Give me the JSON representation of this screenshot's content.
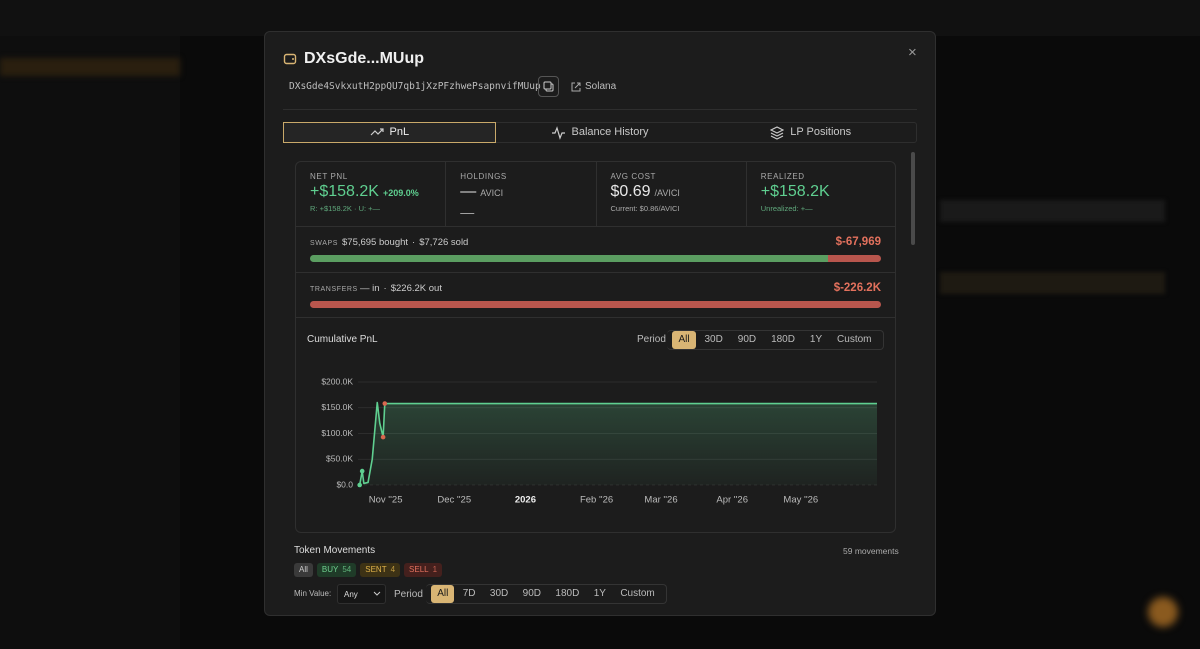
{
  "modal": {
    "title": "DXsGde...MUup",
    "address": "DXsGde4SvkxutH2ppQU7qb1jXzPFzhwePsapnvifMUup",
    "network": "Solana"
  },
  "tabs": [
    {
      "label": "PnL",
      "active": true
    },
    {
      "label": "Balance History",
      "active": false
    },
    {
      "label": "LP Positions",
      "active": false
    }
  ],
  "stats": [
    {
      "label": "NET PNL",
      "value": "+$158.2K",
      "extra": "+209.0%",
      "sub": "R: +$158.2K · U: +—",
      "tone": "positive"
    },
    {
      "label": "HOLDINGS",
      "value": "—",
      "extra": "AVICI",
      "sub": "—",
      "tone": "neutral"
    },
    {
      "label": "AVG COST",
      "value": "$0.69",
      "extra": "/AVICI",
      "sub": "Current: $0.86/AVICI",
      "tone": "neutral"
    },
    {
      "label": "REALIZED",
      "value": "+$158.2K",
      "sub": "Unrealized: +—",
      "tone": "positive"
    }
  ],
  "flows": [
    {
      "label": "SWAPS",
      "separator": "·",
      "total": "$-67,969",
      "segments": [
        {
          "value": 75695,
          "label": "$75,695 bought",
          "color": "#5b9e61"
        },
        {
          "value": 7726,
          "label": "$7,726 sold",
          "color": "#b8564d"
        }
      ]
    },
    {
      "label": "TRANSFERS",
      "separator": "·",
      "total": "$-226.2K",
      "segments": [
        {
          "value": null,
          "label": "— in",
          "color": "#5b9e61"
        },
        {
          "value": 226200,
          "label": "$226.2K out",
          "color": "#b8564d"
        }
      ]
    }
  ],
  "chart_data": {
    "type": "line",
    "title": "Cumulative PnL",
    "color": "#5fcf90",
    "grid": true,
    "x": [
      2025.802,
      2025.805,
      2025.807,
      2025.812,
      2025.817,
      2025.823,
      2025.826,
      2025.83,
      2025.832,
      2026.42
    ],
    "values": [
      0,
      27000,
      3000,
      5000,
      50000,
      160000,
      120000,
      93000,
      158200,
      158200
    ],
    "marker_colors": [
      "#5fcf90",
      "#5fcf90",
      null,
      null,
      null,
      null,
      null,
      "#d9674f",
      "#d9674f",
      null
    ],
    "xlim": [
      2025.8,
      2026.42
    ],
    "ylim": [
      0,
      200000
    ],
    "xticks": [
      {
        "value": 2025.833,
        "label": "Nov ''25"
      },
      {
        "value": 2025.915,
        "label": "Dec ''25"
      },
      2026,
      {
        "value": 2026.085,
        "label": "Feb ''26"
      },
      {
        "value": 2026.162,
        "label": "Mar ''26"
      },
      {
        "value": 2026.247,
        "label": "Apr ''26"
      },
      {
        "value": 2026.329,
        "label": "May ''26"
      }
    ],
    "yticks": [
      {
        "value": 0,
        "label": "$0.0"
      },
      {
        "value": 50000,
        "label": "$50.0K"
      },
      {
        "value": 100000,
        "label": "$100.0K"
      },
      {
        "value": 150000,
        "label": "$150.0K"
      },
      {
        "value": 200000,
        "label": "$200.0K"
      }
    ],
    "period_label": "Period",
    "periods": [
      "All",
      "30D",
      "90D",
      "180D",
      "1Y",
      "Custom"
    ],
    "active_period": 0
  },
  "movements": {
    "title": "Token Movements",
    "count": "59 movements",
    "filters": [
      {
        "label": "All"
      },
      {
        "label": "BUY",
        "count": 54
      },
      {
        "label": "SENT",
        "count": 4
      },
      {
        "label": "SELL",
        "count": 1
      }
    ],
    "min_value_label": "Min Value:",
    "min_value": "Any",
    "period_label": "Period",
    "periods": [
      "All",
      "7D",
      "30D",
      "90D",
      "180D",
      "1Y",
      "Custom"
    ],
    "active_period": 0
  }
}
